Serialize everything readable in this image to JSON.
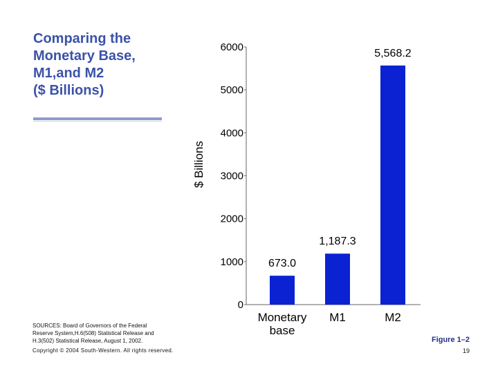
{
  "slide": {
    "title_lines": [
      "Comparing the",
      "Monetary Base,",
      "M1,and M2",
      "($ Billions)"
    ],
    "sources_lines": [
      "SOURCES: Board of Governors of the Federal",
      "Reserve System,H.6(508) Statistical Release and",
      "H.3(502) Statistical Release, August 1, 2002."
    ],
    "copyright": "Copyright © 2004 South-Western. All rights reserved.",
    "figure_label": "Figure 1–2",
    "page_number": "19"
  },
  "colors": {
    "bar": "#0b22d2",
    "title": "#3b52a8",
    "figure_label": "#24308a"
  },
  "chart_data": {
    "type": "bar",
    "categories": [
      "Monetary base",
      "M1",
      "M2"
    ],
    "category_tick_lines": [
      [
        "Monetary",
        "base"
      ],
      [
        "M1"
      ],
      [
        "M2"
      ]
    ],
    "values": [
      673.0,
      1187.3,
      5568.2
    ],
    "value_labels": [
      "673.0",
      "1,187.3",
      "5,568.2"
    ],
    "ylabel": "$ Billions",
    "ylim": [
      0,
      6000
    ],
    "yticks": [
      0,
      1000,
      2000,
      3000,
      4000,
      5000,
      6000
    ],
    "ytick_labels": [
      "0",
      "1000",
      "2000",
      "3000",
      "4000",
      "5000",
      "6000"
    ],
    "grid": false
  }
}
